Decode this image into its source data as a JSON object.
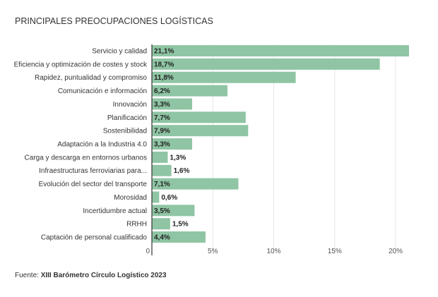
{
  "chart_data": {
    "type": "bar",
    "orientation": "horizontal",
    "title": "PRINCIPALES PREOCUPACIONES LOGÍSTICAS",
    "categories": [
      "Servicio y calidad",
      "Eficiencia y optimización de costes y stock",
      "Rapidez, puntualidad y compromiso",
      "Comunicación e información",
      "Innovación",
      "Planificación",
      "Sostenibilidad",
      "Adaptación a la Industria 4.0",
      "Carga y descarga en entornos urbanos",
      "Infraestructuras ferroviarias para...",
      "Evolución del sector del transporte",
      "Morosidad",
      "Incertidumbre actual",
      "RRHH",
      "Captación de personal cualificado"
    ],
    "values": [
      21.1,
      18.7,
      11.8,
      6.2,
      3.3,
      7.7,
      7.9,
      3.3,
      1.3,
      1.6,
      7.1,
      0.6,
      3.5,
      1.5,
      4.4
    ],
    "value_labels": [
      "21,1%",
      "18,7%",
      "11,8%",
      "6,2%",
      "3,3%",
      "7,7%",
      "7,9%",
      "3,3%",
      "1,3%",
      "1,6%",
      "7,1%",
      "0,6%",
      "3,5%",
      "1,5%",
      "4,4%"
    ],
    "xticks": [
      0,
      5,
      10,
      15,
      20
    ],
    "xtick_labels": [
      "0",
      "5%",
      "10%",
      "15%",
      "20%"
    ],
    "xlim": [
      0,
      21.5
    ],
    "grid": true,
    "bar_color": "#8fc5a4"
  },
  "source": {
    "label": "Fuente:",
    "text": "XIII Barómetro Círculo Logístico 2023"
  }
}
